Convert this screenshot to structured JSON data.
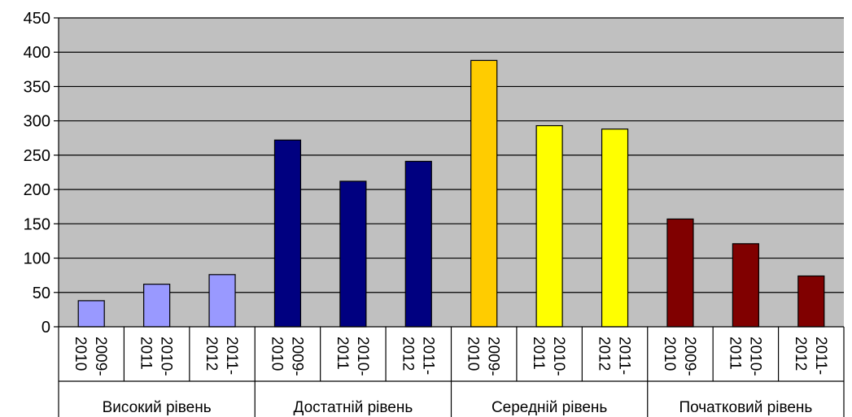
{
  "chart_data": {
    "type": "bar",
    "groups": [
      {
        "label": "Високий рівень",
        "categories": [
          "2009-2010",
          "2010-2011",
          "2011-2012"
        ],
        "values": [
          38,
          62,
          76
        ],
        "colors": [
          "#9999ff",
          "#9999ff",
          "#9999ff"
        ]
      },
      {
        "label": "Достатній рівень",
        "categories": [
          "2009-2010",
          "2010-2011",
          "2011-2012"
        ],
        "values": [
          272,
          212,
          241
        ],
        "colors": [
          "#000080",
          "#000080",
          "#000080"
        ]
      },
      {
        "label": "Середній рівень",
        "categories": [
          "2009-2010",
          "2010-2011",
          "2011-2012"
        ],
        "values": [
          388,
          293,
          288
        ],
        "colors": [
          "#ffcc00",
          "#ffff00",
          "#ffff00"
        ]
      },
      {
        "label": "Початковий рівень",
        "categories": [
          "2009-2010",
          "2010-2011",
          "2011-2012"
        ],
        "values": [
          157,
          121,
          74
        ],
        "colors": [
          "#800000",
          "#800000",
          "#800000"
        ]
      }
    ],
    "ylim": [
      0,
      450
    ],
    "yticks": [
      0,
      50,
      100,
      150,
      200,
      250,
      300,
      350,
      400,
      450
    ],
    "grid": true,
    "plot_background": "#c0c0c0",
    "legend": "none"
  }
}
